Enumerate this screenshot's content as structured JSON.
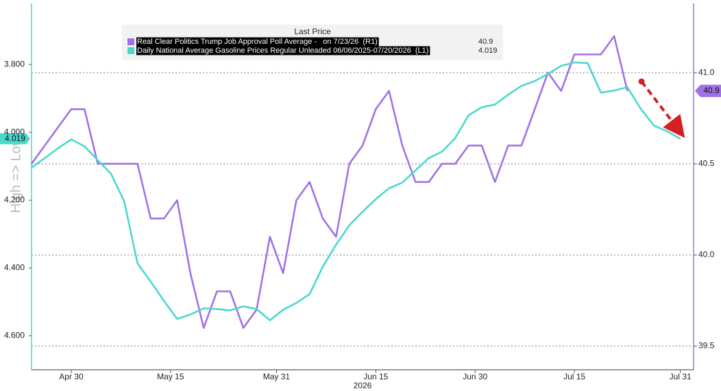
{
  "chart_data": {
    "type": "line",
    "y_label": "High => Low",
    "x_label": "2026",
    "legend_title": "Last Price",
    "x": [
      "2026-04-24",
      "2026-04-26",
      "2026-04-28",
      "2026-04-30",
      "2026-05-02",
      "2026-05-04",
      "2026-05-06",
      "2026-05-08",
      "2026-05-10",
      "2026-05-12",
      "2026-05-14",
      "2026-05-16",
      "2026-05-18",
      "2026-05-20",
      "2026-05-22",
      "2026-05-24",
      "2026-05-26",
      "2026-05-28",
      "2026-05-30",
      "2026-06-01",
      "2026-06-03",
      "2026-06-05",
      "2026-06-07",
      "2026-06-09",
      "2026-06-11",
      "2026-06-13",
      "2026-06-15",
      "2026-06-17",
      "2026-06-19",
      "2026-06-21",
      "2026-06-23",
      "2026-06-25",
      "2026-06-27",
      "2026-06-29",
      "2026-07-01",
      "2026-07-03",
      "2026-07-05",
      "2026-07-07",
      "2026-07-09",
      "2026-07-11",
      "2026-07-13",
      "2026-07-15",
      "2026-07-17",
      "2026-07-19",
      "2026-07-21",
      "2026-07-23",
      "2026-07-25",
      "2026-07-27",
      "2026-07-29",
      "2026-07-31"
    ],
    "xlim": [
      "2026-04-24",
      "2026-08-02"
    ],
    "xticks": [
      {
        "value": "2026-04-30",
        "label": "Apr 30"
      },
      {
        "value": "2026-05-15",
        "label": "May 15"
      },
      {
        "value": "2026-05-31",
        "label": "May 31"
      },
      {
        "value": "2026-06-15",
        "label": "Jun 15"
      },
      {
        "value": "2026-06-30",
        "label": "Jun 30"
      },
      {
        "value": "2026-07-15",
        "label": "Jul 15"
      },
      {
        "value": "2026-07-31",
        "label": "Jul 31"
      }
    ],
    "ylim": [
      4.7,
      3.62
    ],
    "yticks": [
      {
        "value": 3.8,
        "label": "3.800"
      },
      {
        "value": 4.0,
        "label": "4.000"
      },
      {
        "value": 4.2,
        "label": "4.200"
      },
      {
        "value": 4.4,
        "label": "4.400"
      },
      {
        "value": 4.6,
        "label": "4.600"
      }
    ],
    "y2lim": [
      39.37,
      41.38
    ],
    "y2ticks": [
      39.5,
      {
        "value": 40,
        "label": "40.0"
      },
      40.5,
      {
        "value": 41,
        "label": "41.0"
      }
    ],
    "grid": true,
    "series": [
      {
        "name": "Real Clear Politics Trump Job Approval Poll Average -   on 7/23/26  (R1)",
        "color": "#a072e6",
        "axis": "y2",
        "values": [
          40.5,
          40.6,
          40.7,
          40.8,
          40.8,
          40.5,
          40.5,
          40.5,
          40.5,
          40.2,
          40.2,
          40.3,
          39.9,
          39.6,
          39.8,
          39.8,
          39.6,
          39.7,
          40.1,
          39.9,
          40.3,
          40.4,
          40.2,
          40.1,
          40.5,
          40.6,
          40.8,
          40.9,
          40.6,
          40.4,
          40.4,
          40.5,
          40.5,
          40.6,
          40.6,
          40.4,
          40.6,
          40.6,
          40.8,
          41.0,
          40.9,
          41.1,
          41.1,
          41.1,
          41.2,
          40.9,
          null,
          null,
          null,
          null
        ]
      },
      {
        "name": "Daily National Average Gasoline Prices Regular Unleaded 06/06/2025-07/20/2026  (L1)",
        "color": "#4ad8cd",
        "axis": "y",
        "values": [
          4.104,
          4.076,
          4.047,
          4.021,
          4.041,
          4.082,
          4.122,
          4.203,
          4.386,
          4.44,
          4.497,
          4.55,
          4.537,
          4.519,
          4.521,
          4.525,
          4.513,
          4.521,
          4.554,
          4.523,
          4.503,
          4.477,
          4.396,
          4.331,
          4.274,
          4.234,
          4.197,
          4.165,
          4.148,
          4.112,
          4.076,
          4.057,
          4.017,
          3.95,
          3.926,
          3.918,
          3.889,
          3.863,
          3.849,
          3.828,
          3.804,
          3.794,
          3.796,
          3.883,
          3.877,
          3.867,
          3.93,
          3.98,
          3.997,
          4.019
        ]
      }
    ]
  }
}
